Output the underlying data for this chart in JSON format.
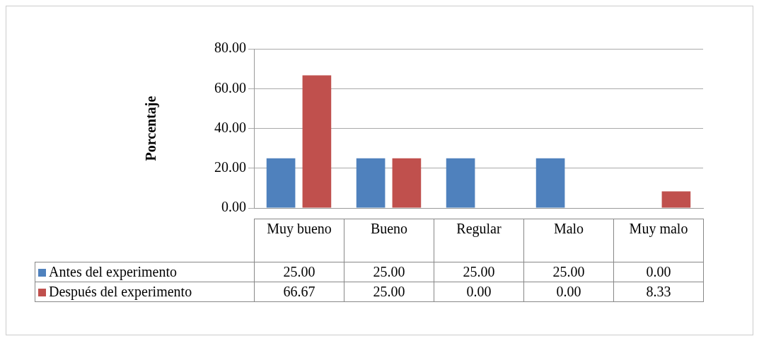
{
  "chart_data": {
    "type": "bar",
    "ylabel": "Porcentaje",
    "categories": [
      "Muy bueno",
      "Bueno",
      "Regular",
      "Malo",
      "Muy malo"
    ],
    "series": [
      {
        "name": "Antes del experimento",
        "color": "#4f81bd",
        "values": [
          25,
          25,
          25,
          25,
          0
        ],
        "value_labels": [
          "25.00",
          "25.00",
          "25.00",
          "25.00",
          "0.00"
        ]
      },
      {
        "name": "Después del experimento",
        "color": "#c0504d",
        "values": [
          66.67,
          25,
          0,
          0,
          8.33
        ],
        "value_labels": [
          "66.67",
          "25.00",
          "0.00",
          "0.00",
          "8.33"
        ]
      }
    ],
    "ylim": [
      0,
      80
    ],
    "yticks": [
      {
        "value": 0,
        "label": "0.00"
      },
      {
        "value": 20,
        "label": "20.00"
      },
      {
        "value": 40,
        "label": "40.00"
      },
      {
        "value": 60,
        "label": "60.00"
      },
      {
        "value": 80,
        "label": "80.00"
      }
    ],
    "grid": "y",
    "legend": "bottom"
  }
}
